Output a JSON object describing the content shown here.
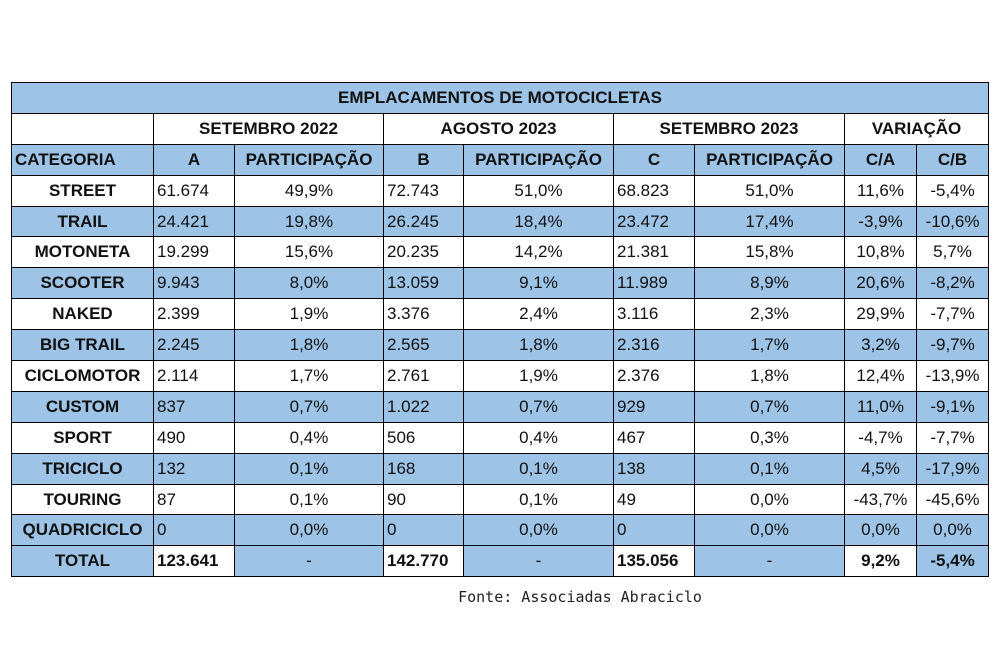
{
  "title": "EMPLACAMENTOS DE MOTOCICLETAS",
  "groups": [
    "SETEMBRO 2022",
    "AGOSTO 2023",
    "SETEMBRO 2023",
    "VARIAÇÃO"
  ],
  "columns": [
    "CATEGORIA",
    "A",
    "PARTICIPAÇÃO",
    "B",
    "PARTICIPAÇÃO",
    "C",
    "PARTICIPAÇÃO",
    "C/A",
    "C/B"
  ],
  "rows": [
    [
      "STREET",
      "61.674",
      "49,9%",
      "72.743",
      "51,0%",
      "68.823",
      "51,0%",
      "11,6%",
      "-5,4%"
    ],
    [
      "TRAIL",
      "24.421",
      "19,8%",
      "26.245",
      "18,4%",
      "23.472",
      "17,4%",
      "-3,9%",
      "-10,6%"
    ],
    [
      "MOTONETA",
      "19.299",
      "15,6%",
      "20.235",
      "14,2%",
      "21.381",
      "15,8%",
      "10,8%",
      "5,7%"
    ],
    [
      "SCOOTER",
      "9.943",
      "8,0%",
      "13.059",
      "9,1%",
      "11.989",
      "8,9%",
      "20,6%",
      "-8,2%"
    ],
    [
      "NAKED",
      "2.399",
      "1,9%",
      "3.376",
      "2,4%",
      "3.116",
      "2,3%",
      "29,9%",
      "-7,7%"
    ],
    [
      "BIG TRAIL",
      "2.245",
      "1,8%",
      "2.565",
      "1,8%",
      "2.316",
      "1,7%",
      "3,2%",
      "-9,7%"
    ],
    [
      "CICLOMOTOR",
      "2.114",
      "1,7%",
      "2.761",
      "1,9%",
      "2.376",
      "1,8%",
      "12,4%",
      "-13,9%"
    ],
    [
      "CUSTOM",
      "837",
      "0,7%",
      "1.022",
      "0,7%",
      "929",
      "0,7%",
      "11,0%",
      "-9,1%"
    ],
    [
      "SPORT",
      "490",
      "0,4%",
      "506",
      "0,4%",
      "467",
      "0,3%",
      "-4,7%",
      "-7,7%"
    ],
    [
      "TRICICLO",
      "132",
      "0,1%",
      "168",
      "0,1%",
      "138",
      "0,1%",
      "4,5%",
      "-17,9%"
    ],
    [
      "TOURING",
      "87",
      "0,1%",
      "90",
      "0,1%",
      "49",
      "0,0%",
      "-43,7%",
      "-45,6%"
    ],
    [
      "QUADRICICLO",
      "0",
      "0,0%",
      "0",
      "0,0%",
      "0",
      "0,0%",
      "0,0%",
      "0,0%"
    ]
  ],
  "total": [
    "TOTAL",
    "123.641",
    "-",
    "142.770",
    "-",
    "135.056",
    "-",
    "9,2%",
    "-5,4%"
  ],
  "source": "Fonte: Associadas Abraciclo",
  "colors": {
    "header_blue": "#9dc3e6",
    "border": "#000000"
  }
}
